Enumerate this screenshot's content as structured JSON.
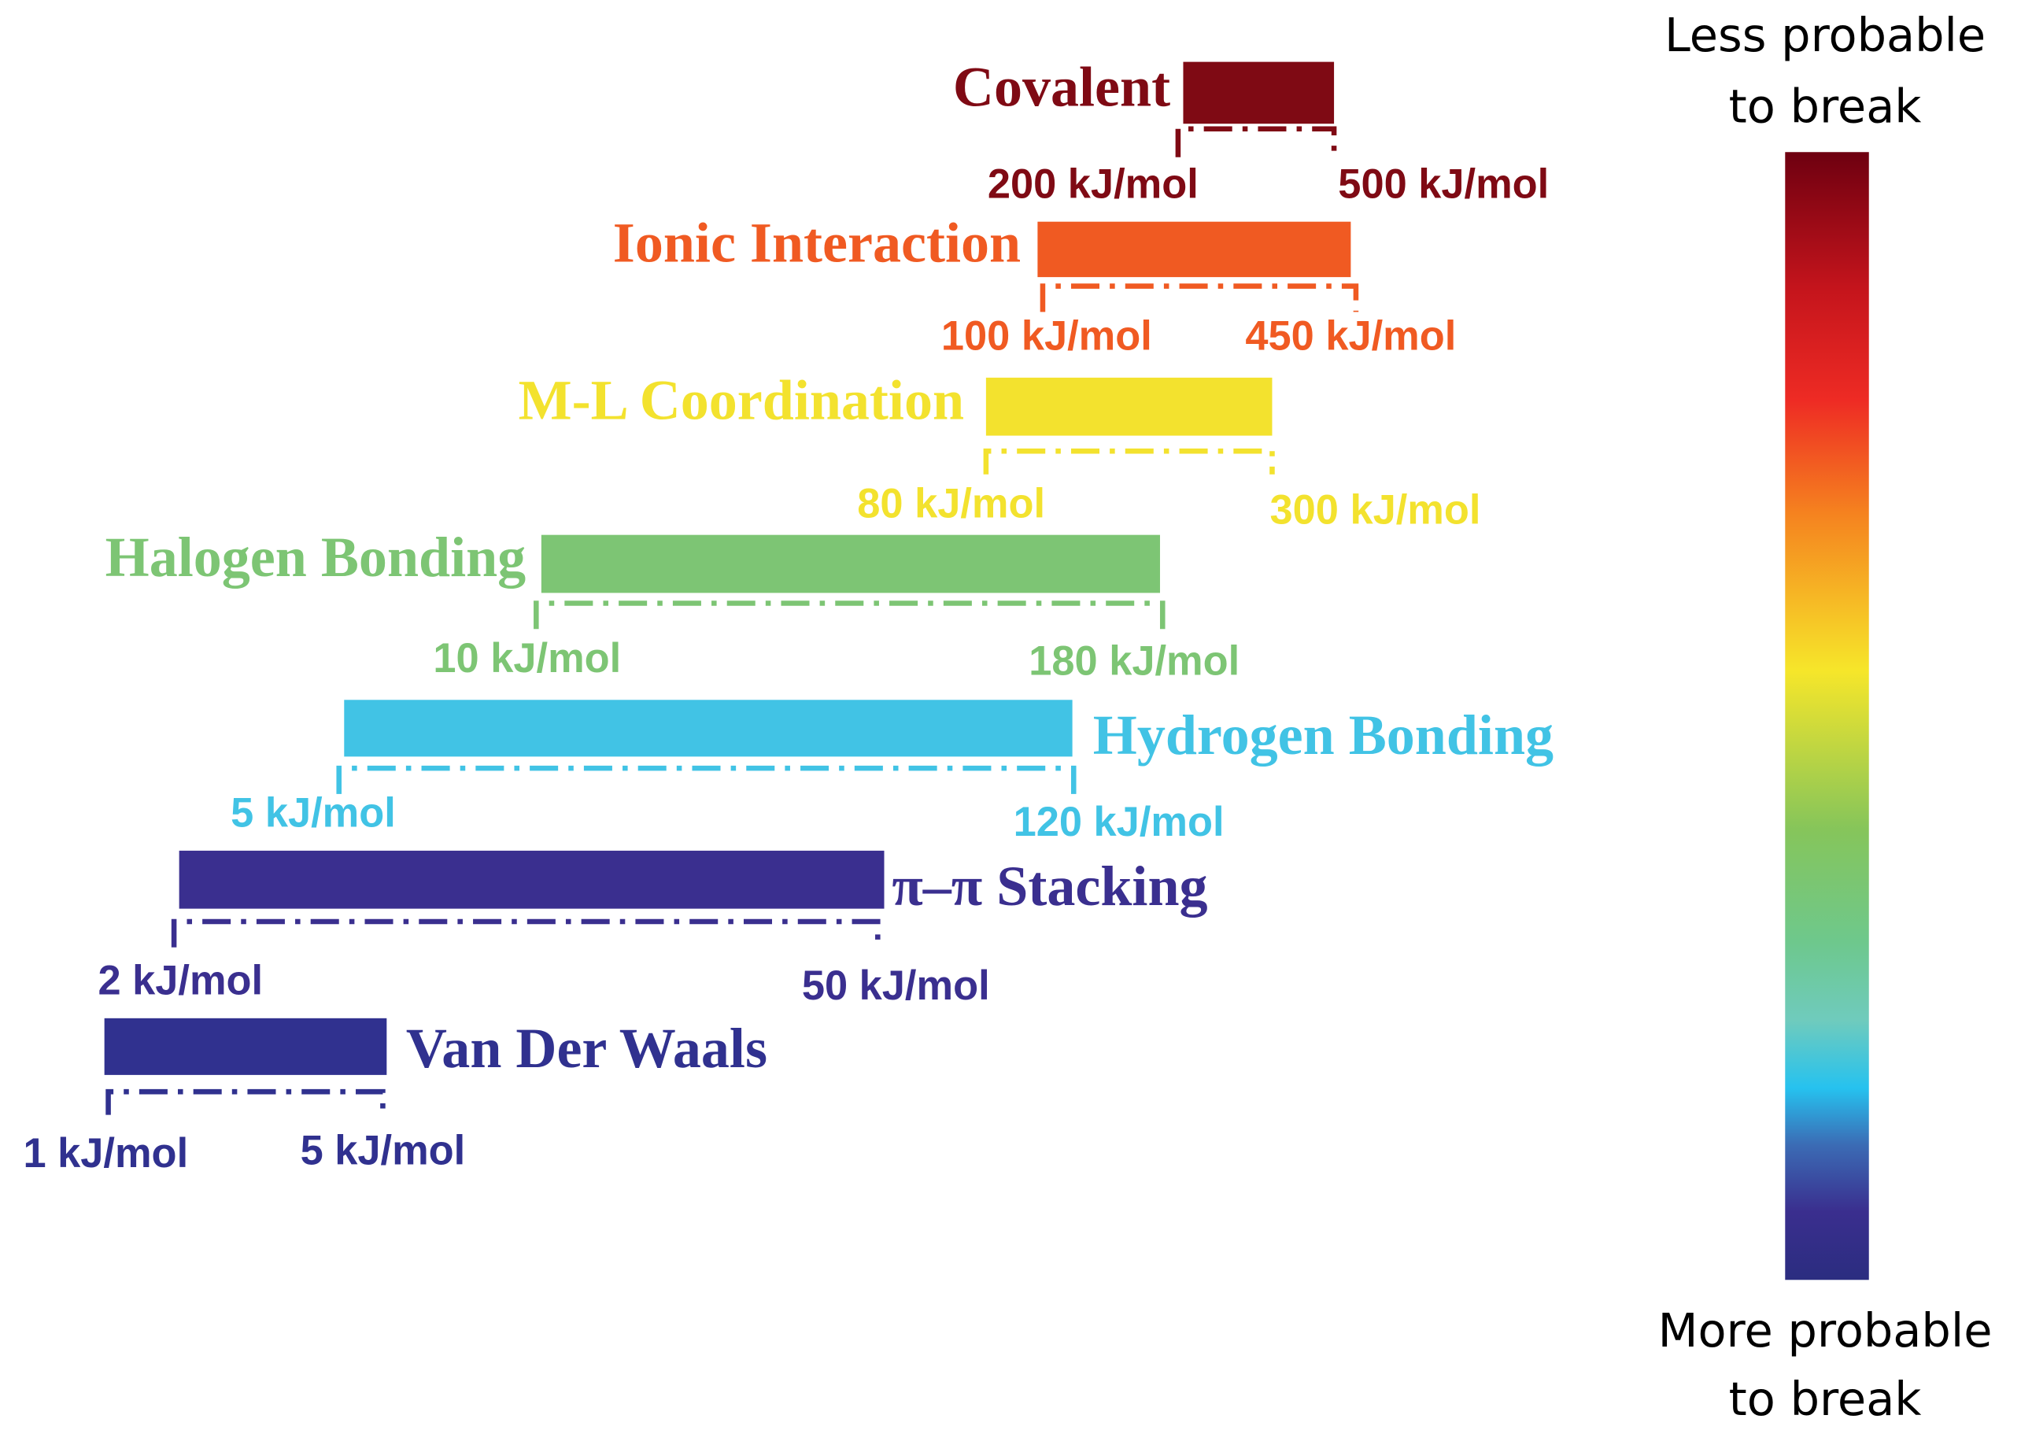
{
  "bonds": [
    {
      "name": "Covalent",
      "min": "200 kJ/mol",
      "max": "500 kJ/mol",
      "color": "#7f0a14"
    },
    {
      "name": "Ionic Interaction",
      "min": "100 kJ/mol",
      "max": "450 kJ/mol",
      "color": "#f05a22"
    },
    {
      "name": "M-L Coordination",
      "min": "80 kJ/mol",
      "max": "300 kJ/mol",
      "color": "#f3e22e"
    },
    {
      "name": "Halogen Bonding",
      "min": "10 kJ/mol",
      "max": "180 kJ/mol",
      "color": "#7dc574"
    },
    {
      "name": "Hydrogen Bonding",
      "min": "5 kJ/mol",
      "max": "120 kJ/mol",
      "color": "#41c3e5"
    },
    {
      "name": "π–π Stacking",
      "min": "2 kJ/mol",
      "max": "50 kJ/mol",
      "color": "#3a2f8f"
    },
    {
      "name": "Van Der Waals",
      "min": "1 kJ/mol",
      "max": "5 kJ/mol",
      "color": "#30318f"
    }
  ],
  "colorbar": {
    "top_label": [
      "Less probable",
      "to break"
    ],
    "bottom_label": [
      "More probable",
      "to break"
    ]
  }
}
